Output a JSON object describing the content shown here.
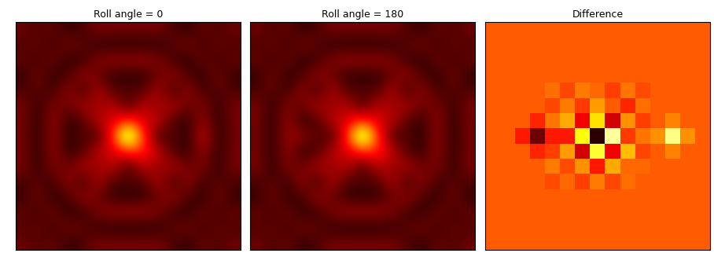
{
  "chart_data": [
    {
      "type": "heatmap",
      "title": "Roll angle = 0",
      "color": "hot",
      "tick_labels": false,
      "value_range": [
        0,
        1
      ],
      "cells": [
        [
          0.15,
          0.1,
          0.14,
          0.06,
          0.1,
          0.17,
          0.16,
          0.16,
          0.16,
          0.17,
          0.1,
          0.06,
          0.14,
          0.1,
          0.15
        ],
        [
          0.1,
          0.14,
          0.08,
          0.17,
          0.12,
          0.06,
          0.05,
          0.05,
          0.05,
          0.06,
          0.12,
          0.17,
          0.08,
          0.14,
          0.1
        ],
        [
          0.14,
          0.08,
          0.16,
          0.05,
          0.08,
          0.18,
          0.22,
          0.22,
          0.22,
          0.18,
          0.08,
          0.05,
          0.16,
          0.08,
          0.14
        ],
        [
          0.06,
          0.17,
          0.05,
          0.1,
          0.22,
          0.14,
          0.06,
          0.05,
          0.06,
          0.14,
          0.22,
          0.1,
          0.05,
          0.17,
          0.06
        ],
        [
          0.1,
          0.12,
          0.08,
          0.22,
          0.06,
          0.26,
          0.1,
          0.12,
          0.1,
          0.26,
          0.06,
          0.22,
          0.08,
          0.12,
          0.1
        ],
        [
          0.17,
          0.06,
          0.18,
          0.14,
          0.26,
          0.2,
          0.28,
          0.08,
          0.28,
          0.2,
          0.26,
          0.14,
          0.18,
          0.06,
          0.17
        ],
        [
          0.16,
          0.05,
          0.22,
          0.06,
          0.1,
          0.28,
          0.3,
          0.45,
          0.3,
          0.28,
          0.1,
          0.06,
          0.22,
          0.05,
          0.16
        ],
        [
          0.16,
          0.05,
          0.22,
          0.05,
          0.12,
          0.08,
          0.45,
          1.0,
          0.45,
          0.08,
          0.12,
          0.05,
          0.3,
          0.05,
          0.16
        ],
        [
          0.16,
          0.05,
          0.22,
          0.06,
          0.1,
          0.28,
          0.3,
          0.45,
          0.42,
          0.28,
          0.1,
          0.06,
          0.22,
          0.05,
          0.16
        ],
        [
          0.17,
          0.06,
          0.18,
          0.14,
          0.26,
          0.2,
          0.28,
          0.08,
          0.28,
          0.2,
          0.26,
          0.14,
          0.18,
          0.06,
          0.17
        ],
        [
          0.1,
          0.12,
          0.08,
          0.22,
          0.06,
          0.26,
          0.1,
          0.12,
          0.1,
          0.26,
          0.06,
          0.22,
          0.08,
          0.12,
          0.1
        ],
        [
          0.06,
          0.17,
          0.05,
          0.1,
          0.22,
          0.14,
          0.06,
          0.05,
          0.06,
          0.14,
          0.22,
          0.1,
          0.05,
          0.17,
          0.06
        ],
        [
          0.14,
          0.08,
          0.16,
          0.05,
          0.08,
          0.18,
          0.22,
          0.22,
          0.22,
          0.18,
          0.08,
          0.05,
          0.16,
          0.08,
          0.14
        ],
        [
          0.1,
          0.14,
          0.08,
          0.17,
          0.12,
          0.06,
          0.05,
          0.05,
          0.05,
          0.06,
          0.12,
          0.17,
          0.08,
          0.14,
          0.1
        ],
        [
          0.15,
          0.1,
          0.14,
          0.06,
          0.1,
          0.17,
          0.16,
          0.16,
          0.16,
          0.17,
          0.1,
          0.06,
          0.14,
          0.1,
          0.15
        ]
      ]
    },
    {
      "type": "heatmap",
      "title": "Roll angle = 180",
      "color": "hot",
      "tick_labels": false,
      "value_range": [
        0,
        1
      ],
      "cells": [
        [
          0.15,
          0.1,
          0.14,
          0.06,
          0.1,
          0.17,
          0.16,
          0.16,
          0.16,
          0.17,
          0.1,
          0.06,
          0.14,
          0.1,
          0.15
        ],
        [
          0.1,
          0.14,
          0.08,
          0.17,
          0.12,
          0.06,
          0.05,
          0.05,
          0.05,
          0.06,
          0.12,
          0.17,
          0.08,
          0.14,
          0.1
        ],
        [
          0.14,
          0.08,
          0.16,
          0.05,
          0.08,
          0.18,
          0.22,
          0.22,
          0.22,
          0.18,
          0.08,
          0.05,
          0.16,
          0.08,
          0.14
        ],
        [
          0.06,
          0.17,
          0.05,
          0.1,
          0.22,
          0.14,
          0.06,
          0.05,
          0.06,
          0.14,
          0.22,
          0.1,
          0.05,
          0.17,
          0.06
        ],
        [
          0.1,
          0.12,
          0.08,
          0.22,
          0.06,
          0.26,
          0.1,
          0.12,
          0.1,
          0.26,
          0.06,
          0.22,
          0.08,
          0.12,
          0.1
        ],
        [
          0.17,
          0.06,
          0.18,
          0.14,
          0.26,
          0.2,
          0.28,
          0.08,
          0.28,
          0.2,
          0.26,
          0.14,
          0.18,
          0.06,
          0.17
        ],
        [
          0.16,
          0.05,
          0.22,
          0.06,
          0.1,
          0.28,
          0.3,
          0.45,
          0.3,
          0.28,
          0.1,
          0.06,
          0.22,
          0.05,
          0.16
        ],
        [
          0.16,
          0.05,
          0.22,
          0.2,
          0.12,
          0.08,
          0.45,
          1.0,
          0.45,
          0.08,
          0.12,
          0.05,
          0.22,
          0.05,
          0.16
        ],
        [
          0.16,
          0.05,
          0.22,
          0.06,
          0.1,
          0.28,
          0.3,
          0.45,
          0.42,
          0.28,
          0.1,
          0.06,
          0.22,
          0.05,
          0.16
        ],
        [
          0.17,
          0.06,
          0.18,
          0.14,
          0.26,
          0.2,
          0.28,
          0.08,
          0.28,
          0.2,
          0.26,
          0.14,
          0.18,
          0.06,
          0.17
        ],
        [
          0.1,
          0.12,
          0.08,
          0.22,
          0.06,
          0.26,
          0.1,
          0.12,
          0.1,
          0.26,
          0.06,
          0.22,
          0.08,
          0.12,
          0.1
        ],
        [
          0.06,
          0.17,
          0.05,
          0.1,
          0.22,
          0.14,
          0.06,
          0.05,
          0.06,
          0.14,
          0.22,
          0.1,
          0.05,
          0.17,
          0.06
        ],
        [
          0.14,
          0.08,
          0.16,
          0.05,
          0.08,
          0.18,
          0.22,
          0.22,
          0.22,
          0.18,
          0.08,
          0.05,
          0.16,
          0.08,
          0.14
        ],
        [
          0.1,
          0.14,
          0.08,
          0.17,
          0.12,
          0.06,
          0.05,
          0.05,
          0.05,
          0.06,
          0.12,
          0.17,
          0.08,
          0.14,
          0.1
        ],
        [
          0.15,
          0.1,
          0.14,
          0.06,
          0.1,
          0.17,
          0.16,
          0.16,
          0.16,
          0.17,
          0.1,
          0.06,
          0.14,
          0.1,
          0.15
        ]
      ]
    },
    {
      "type": "heatmap",
      "title": "Difference",
      "color": "hot",
      "tick_labels": false,
      "value_range": [
        0,
        1
      ],
      "cells": [
        [
          0.5,
          0.5,
          0.5,
          0.5,
          0.5,
          0.5,
          0.5,
          0.5,
          0.5,
          0.5,
          0.5,
          0.5,
          0.5,
          0.5,
          0.5
        ],
        [
          0.5,
          0.5,
          0.5,
          0.5,
          0.5,
          0.5,
          0.5,
          0.5,
          0.5,
          0.5,
          0.5,
          0.5,
          0.5,
          0.5,
          0.5
        ],
        [
          0.5,
          0.5,
          0.5,
          0.5,
          0.5,
          0.5,
          0.5,
          0.5,
          0.5,
          0.5,
          0.5,
          0.5,
          0.5,
          0.5,
          0.5
        ],
        [
          0.5,
          0.5,
          0.5,
          0.5,
          0.5,
          0.5,
          0.5,
          0.5,
          0.5,
          0.5,
          0.5,
          0.5,
          0.5,
          0.5,
          0.5
        ],
        [
          0.5,
          0.5,
          0.5,
          0.5,
          0.53,
          0.47,
          0.55,
          0.52,
          0.46,
          0.54,
          0.48,
          0.5,
          0.5,
          0.5,
          0.5
        ],
        [
          0.5,
          0.5,
          0.5,
          0.5,
          0.47,
          0.55,
          0.45,
          0.6,
          0.5,
          0.42,
          0.53,
          0.5,
          0.5,
          0.5,
          0.5
        ],
        [
          0.5,
          0.5,
          0.5,
          0.42,
          0.54,
          0.62,
          0.35,
          0.7,
          0.3,
          0.58,
          0.46,
          0.5,
          0.56,
          0.5,
          0.5
        ],
        [
          0.5,
          0.5,
          0.4,
          0.15,
          0.4,
          0.4,
          0.75,
          0.05,
          0.9,
          0.45,
          0.54,
          0.58,
          0.88,
          0.58,
          0.5
        ],
        [
          0.5,
          0.5,
          0.5,
          0.42,
          0.46,
          0.6,
          0.3,
          0.8,
          0.35,
          0.65,
          0.47,
          0.5,
          0.56,
          0.5,
          0.5
        ],
        [
          0.5,
          0.5,
          0.5,
          0.5,
          0.55,
          0.48,
          0.58,
          0.4,
          0.62,
          0.52,
          0.52,
          0.5,
          0.5,
          0.5,
          0.5
        ],
        [
          0.5,
          0.5,
          0.5,
          0.5,
          0.48,
          0.52,
          0.46,
          0.55,
          0.47,
          0.53,
          0.5,
          0.5,
          0.5,
          0.5,
          0.5
        ],
        [
          0.5,
          0.5,
          0.5,
          0.5,
          0.5,
          0.5,
          0.5,
          0.5,
          0.5,
          0.5,
          0.5,
          0.5,
          0.5,
          0.5,
          0.5
        ],
        [
          0.5,
          0.5,
          0.5,
          0.5,
          0.5,
          0.5,
          0.5,
          0.5,
          0.5,
          0.5,
          0.5,
          0.5,
          0.5,
          0.5,
          0.5
        ],
        [
          0.5,
          0.5,
          0.5,
          0.5,
          0.5,
          0.5,
          0.5,
          0.5,
          0.5,
          0.5,
          0.5,
          0.5,
          0.5,
          0.5,
          0.5
        ],
        [
          0.5,
          0.5,
          0.5,
          0.5,
          0.5,
          0.5,
          0.5,
          0.5,
          0.5,
          0.5,
          0.5,
          0.5,
          0.5,
          0.5,
          0.5
        ]
      ]
    }
  ]
}
